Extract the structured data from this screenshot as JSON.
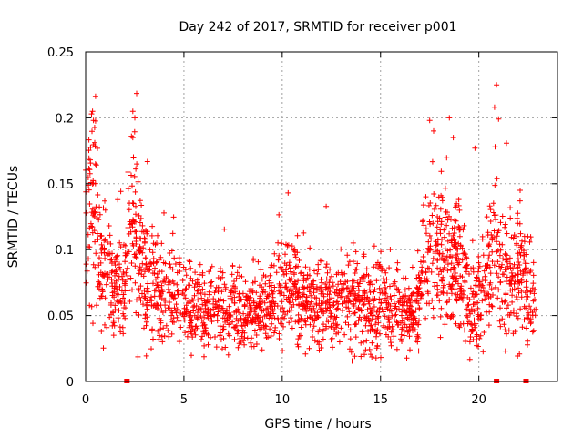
{
  "chart_data": {
    "type": "scatter",
    "title": "Day 242 of 2017, SRMTID for receiver p001",
    "xlabel": "GPS time / hours",
    "ylabel": "SRMTID / TECUs",
    "xlim": [
      0,
      24
    ],
    "ylim": [
      0,
      0.25
    ],
    "x_ticks": [
      0,
      5,
      10,
      15,
      20
    ],
    "x_tick_labels": [
      "0",
      "5",
      "10",
      "15",
      "20"
    ],
    "y_ticks": [
      0,
      0.05,
      0.1,
      0.15,
      0.2,
      0.25
    ],
    "y_tick_labels": [
      "0",
      "0.05",
      "0.1",
      "0.15",
      "0.2",
      "0.25"
    ],
    "grid": true,
    "marker": "+",
    "series_color": "#ff0000",
    "baseline_x": [
      2.1,
      20.9,
      22.4
    ],
    "envelope": {
      "x": [
        0,
        0.15,
        0.3,
        0.5,
        0.8,
        1.2,
        1.8,
        2.0,
        2.2,
        2.5,
        2.8,
        3.2,
        3.6,
        4.0,
        5.0,
        6.0,
        7.0,
        8.0,
        9.0,
        10.0,
        10.5,
        11.0,
        12.0,
        13.0,
        14.0,
        15.0,
        16.0,
        16.8,
        17.2,
        17.6,
        18.0,
        18.5,
        19.0,
        19.5,
        20.0,
        20.3,
        20.6,
        20.9,
        21.2,
        21.6,
        22.0,
        22.5,
        22.9
      ],
      "y": [
        0.11,
        0.14,
        0.15,
        0.13,
        0.09,
        0.075,
        0.065,
        0.07,
        0.12,
        0.11,
        0.09,
        0.075,
        0.07,
        0.065,
        0.06,
        0.058,
        0.055,
        0.052,
        0.055,
        0.065,
        0.07,
        0.06,
        0.058,
        0.06,
        0.06,
        0.058,
        0.052,
        0.05,
        0.085,
        0.1,
        0.095,
        0.09,
        0.085,
        0.06,
        0.055,
        0.07,
        0.09,
        0.1,
        0.08,
        0.075,
        0.085,
        0.07,
        0.06
      ]
    },
    "spikes": [
      {
        "x": 0.3,
        "y": 0.203
      },
      {
        "x": 0.4,
        "y": 0.198
      },
      {
        "x": 0.5,
        "y": 0.165
      },
      {
        "x": 2.4,
        "y": 0.205
      },
      {
        "x": 2.5,
        "y": 0.2
      },
      {
        "x": 2.4,
        "y": 0.185
      },
      {
        "x": 2.6,
        "y": 0.165
      },
      {
        "x": 10.3,
        "y": 0.143
      },
      {
        "x": 17.5,
        "y": 0.198
      },
      {
        "x": 17.7,
        "y": 0.19
      },
      {
        "x": 18.5,
        "y": 0.2
      },
      {
        "x": 18.7,
        "y": 0.185
      },
      {
        "x": 19.8,
        "y": 0.177
      },
      {
        "x": 20.9,
        "y": 0.225
      },
      {
        "x": 20.8,
        "y": 0.208
      },
      {
        "x": 21.0,
        "y": 0.199
      },
      {
        "x": 22.1,
        "y": 0.145
      }
    ],
    "point_count": 2300
  }
}
